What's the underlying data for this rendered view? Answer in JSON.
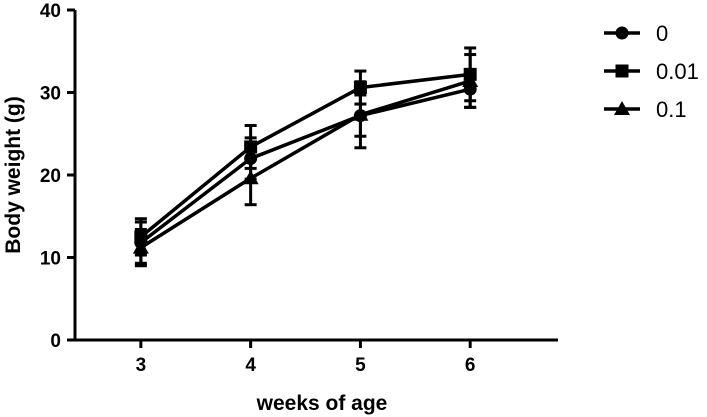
{
  "chart_data": {
    "type": "line",
    "xlabel": "weeks of age",
    "ylabel": "Body weight (g)",
    "x": [
      3,
      4,
      5,
      6
    ],
    "x_tick_labels": [
      "3",
      "4",
      "5",
      "6"
    ],
    "xlim": [
      2.4,
      6.8
    ],
    "ylim": [
      0,
      40
    ],
    "y_ticks": [
      0,
      10,
      20,
      30,
      40
    ],
    "y_tick_labels": [
      "0",
      "10",
      "20",
      "30",
      "40"
    ],
    "grid": false,
    "legend_position": "top-right",
    "series": [
      {
        "name": "0",
        "marker": "circle",
        "values": [
          11.8,
          22.0,
          27.2,
          30.4
        ],
        "error": [
          2.5,
          2.5,
          2.5,
          2.2
        ]
      },
      {
        "name": "0.01",
        "marker": "square",
        "values": [
          12.5,
          23.4,
          30.6,
          32.2
        ],
        "error": [
          2.2,
          2.6,
          2.0,
          3.2
        ]
      },
      {
        "name": "0.1",
        "marker": "triangle",
        "values": [
          11.2,
          19.6,
          27.3,
          31.4
        ],
        "error": [
          2.2,
          3.2,
          4.0,
          3.2
        ]
      }
    ],
    "colors": {
      "series": "#000000"
    }
  }
}
